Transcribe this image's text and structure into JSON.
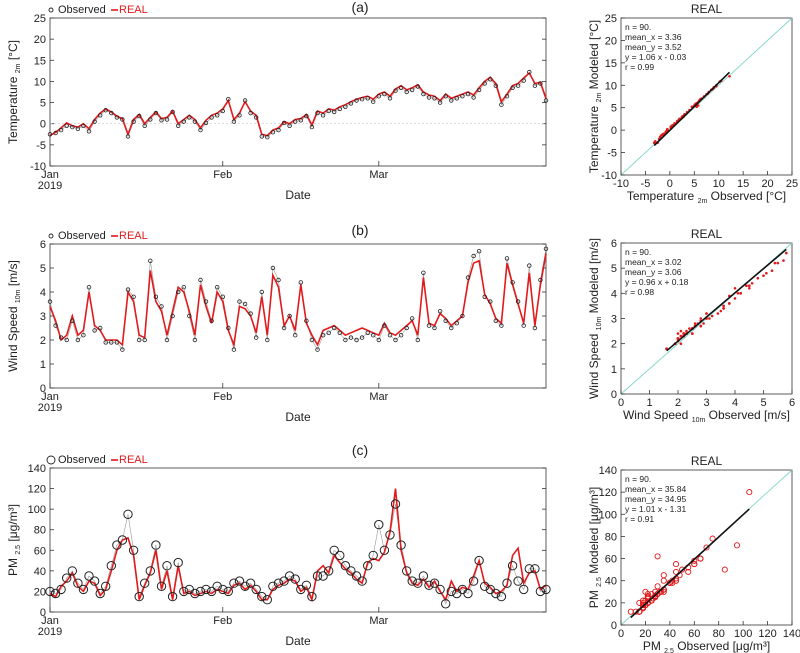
{
  "chart_data": [
    {
      "type": "line",
      "panel_label": "(a)",
      "legend": [
        "Observed",
        "REAL"
      ],
      "xlabel": "Date",
      "ylabel": "Temperature",
      "ylabel_sub": "2m",
      "ylabel_unit": "[°C]",
      "ylim": [
        -10,
        25
      ],
      "yticks": [
        "-10",
        "-5",
        "0",
        "5",
        "10",
        "15",
        "20",
        "25"
      ],
      "xtick_labels": [
        "Jan",
        "Feb",
        "Mar"
      ],
      "xtick_days": [
        0,
        31,
        59
      ],
      "year_label": "2019",
      "days": 90,
      "observed": [
        -2.5,
        -2.2,
        -1.5,
        -0.5,
        -0.8,
        -1.2,
        -0.5,
        -1.8,
        0.5,
        2.0,
        3.2,
        2.5,
        1.5,
        1.0,
        -3.0,
        0.5,
        1.8,
        -0.5,
        1.0,
        2.5,
        0.8,
        1.0,
        2.8,
        -0.5,
        0.5,
        1.5,
        0.5,
        -1.5,
        0.2,
        1.5,
        2.0,
        3.0,
        5.8,
        0.5,
        2.0,
        5.5,
        2.5,
        1.5,
        -3.0,
        -3.2,
        -2.0,
        -1.5,
        0.2,
        -0.5,
        0.5,
        0.8,
        1.8,
        -0.8,
        2.5,
        2.0,
        3.0,
        2.8,
        3.5,
        4.0,
        4.8,
        5.5,
        5.8,
        6.0,
        5.2,
        6.5,
        7.0,
        6.0,
        7.8,
        8.5,
        7.5,
        8.0,
        8.8,
        7.0,
        6.2,
        6.0,
        5.0,
        6.5,
        5.5,
        6.0,
        6.5,
        7.0,
        6.2,
        8.0,
        9.5,
        10.5,
        9.0,
        4.5,
        6.5,
        8.5,
        9.0,
        10.2,
        12.2,
        9.0,
        9.5,
        5.5
      ],
      "modeled": [
        -2.8,
        -2.0,
        -1.0,
        0.2,
        -0.5,
        -0.8,
        0.0,
        -1.2,
        1.0,
        2.5,
        3.5,
        2.8,
        1.8,
        1.2,
        -2.5,
        1.0,
        2.2,
        0.0,
        1.5,
        2.8,
        1.2,
        1.5,
        3.0,
        0.0,
        1.0,
        2.0,
        1.0,
        -1.0,
        0.8,
        2.0,
        2.5,
        3.5,
        5.5,
        1.0,
        2.5,
        5.2,
        3.0,
        2.0,
        -2.5,
        -2.8,
        -1.5,
        -1.0,
        0.5,
        0.0,
        1.0,
        1.2,
        2.2,
        -0.3,
        3.0,
        2.5,
        3.5,
        3.2,
        4.0,
        4.5,
        5.2,
        5.8,
        6.2,
        6.5,
        5.8,
        7.0,
        7.5,
        6.5,
        8.2,
        9.0,
        8.0,
        8.5,
        9.2,
        7.5,
        6.8,
        6.5,
        5.5,
        7.0,
        6.0,
        6.5,
        7.0,
        7.5,
        6.8,
        8.5,
        10.0,
        11.0,
        9.5,
        5.2,
        7.0,
        9.0,
        9.5,
        10.8,
        12.0,
        9.5,
        9.8,
        6.0
      ],
      "scatter": {
        "title": "REAL",
        "xlabel": "Temperature",
        "ylabel": "Temperature",
        "label_sub": "2m",
        "xlabel_tail": "Observed [°C]",
        "ylabel_tail": "Modeled [°C]",
        "lim": [
          -10,
          25
        ],
        "ticks": [
          "-10",
          "-5",
          "0",
          "5",
          "10",
          "15",
          "20",
          "25"
        ],
        "stats": [
          "n = 90.",
          "mean_x = 3.36",
          "mean_y = 3.52",
          "y = 1.06 x - 0.03",
          "r = 0.99"
        ],
        "fit": {
          "slope": 1.06,
          "intercept": -0.03
        }
      }
    },
    {
      "type": "line",
      "panel_label": "(b)",
      "legend": [
        "Observed",
        "REAL"
      ],
      "xlabel": "Date",
      "ylabel": "Wind Speed",
      "ylabel_sub": "10m",
      "ylabel_unit": "[m/s]",
      "ylim": [
        0,
        6
      ],
      "yticks": [
        "0",
        "1",
        "2",
        "3",
        "4",
        "5",
        "6"
      ],
      "xtick_labels": [
        "Jan",
        "Feb",
        "Mar"
      ],
      "xtick_days": [
        0,
        31,
        59
      ],
      "year_label": "2019",
      "days": 90,
      "observed": [
        3.6,
        2.6,
        2.1,
        2.0,
        2.8,
        2.0,
        2.2,
        4.2,
        2.4,
        2.5,
        1.9,
        1.9,
        1.9,
        1.6,
        4.1,
        3.8,
        2.0,
        2.0,
        5.3,
        3.8,
        3.4,
        2.0,
        3.0,
        4.0,
        4.2,
        3.0,
        2.0,
        4.5,
        3.6,
        2.8,
        4.2,
        3.8,
        2.5,
        1.6,
        3.6,
        3.5,
        3.1,
        2.1,
        4.0,
        2.0,
        5.0,
        4.5,
        2.5,
        3.0,
        2.2,
        4.4,
        2.8,
        2.0,
        1.6,
        2.2,
        2.3,
        2.5,
        2.3,
        2.0,
        2.1,
        2.0,
        2.1,
        2.3,
        2.2,
        2.0,
        2.6,
        2.2,
        2.0,
        2.2,
        2.5,
        2.9,
        2.0,
        4.8,
        2.6,
        2.5,
        3.2,
        2.8,
        2.5,
        2.7,
        3.0,
        4.6,
        5.5,
        5.7,
        3.8,
        3.6,
        2.8,
        2.6,
        5.4,
        4.4,
        3.6,
        2.6,
        5.1,
        2.5,
        4.5,
        5.8
      ],
      "modeled": [
        3.4,
        2.8,
        2.0,
        2.2,
        3.0,
        2.2,
        2.4,
        4.0,
        2.6,
        2.4,
        2.0,
        2.0,
        2.0,
        1.8,
        4.0,
        3.6,
        2.2,
        2.1,
        4.9,
        3.6,
        3.2,
        2.2,
        3.2,
        4.2,
        4.0,
        3.2,
        2.2,
        4.3,
        3.4,
        2.7,
        4.0,
        3.6,
        2.4,
        1.8,
        3.4,
        3.3,
        3.0,
        2.3,
        3.8,
        2.2,
        4.7,
        4.2,
        2.6,
        3.0,
        2.4,
        4.3,
        2.7,
        2.2,
        1.8,
        2.4,
        2.5,
        2.6,
        2.4,
        2.2,
        2.3,
        2.4,
        2.5,
        2.4,
        2.3,
        2.2,
        2.7,
        2.3,
        2.2,
        2.4,
        2.6,
        2.8,
        2.2,
        4.6,
        2.7,
        2.6,
        3.1,
        2.9,
        2.6,
        2.8,
        3.0,
        4.4,
        5.2,
        5.3,
        3.9,
        3.5,
        2.9,
        2.7,
        5.2,
        4.3,
        3.5,
        2.7,
        4.8,
        2.6,
        4.3,
        5.6
      ],
      "scatter": {
        "title": "REAL",
        "xlabel": "Wind Speed",
        "ylabel": "Wind Speed",
        "label_sub": "10m",
        "xlabel_tail": "Observed [m/s]",
        "ylabel_tail": "Modeled [m/s]",
        "lim": [
          0,
          6
        ],
        "ticks": [
          "0",
          "1",
          "2",
          "3",
          "4",
          "5",
          "6"
        ],
        "stats": [
          "n = 90.",
          "mean_x = 3.02",
          "mean_y = 3.06",
          "y = 0.96 x + 0.18",
          "r = 0.98"
        ],
        "fit": {
          "slope": 0.96,
          "intercept": 0.18
        }
      }
    },
    {
      "type": "line",
      "panel_label": "(c)",
      "legend": [
        "Observed",
        "REAL"
      ],
      "xlabel": "Date",
      "ylabel": "PM",
      "ylabel_sub": "2.5",
      "ylabel_unit": "[μg/m³]",
      "ylim": [
        0,
        140
      ],
      "yticks": [
        "0",
        "20",
        "40",
        "60",
        "80",
        "100",
        "120",
        "140"
      ],
      "xtick_labels": [
        "Jan",
        "Feb",
        "Mar"
      ],
      "xtick_days": [
        0,
        31,
        59
      ],
      "year_label": "2019",
      "days": 90,
      "observed": [
        20,
        18,
        22,
        33,
        40,
        28,
        22,
        35,
        30,
        18,
        25,
        45,
        65,
        70,
        95,
        60,
        15,
        28,
        40,
        65,
        25,
        45,
        15,
        48,
        20,
        22,
        18,
        20,
        22,
        20,
        25,
        22,
        20,
        28,
        30,
        25,
        28,
        22,
        15,
        12,
        25,
        28,
        30,
        35,
        32,
        22,
        26,
        15,
        35,
        35,
        40,
        60,
        55,
        45,
        40,
        35,
        30,
        45,
        55,
        85,
        60,
        75,
        105,
        65,
        40,
        30,
        28,
        35,
        26,
        28,
        22,
        8,
        20,
        18,
        22,
        18,
        30,
        50,
        25,
        22,
        18,
        15,
        28,
        45,
        30,
        22,
        42,
        42,
        20,
        22
      ],
      "modeled": [
        18,
        15,
        25,
        30,
        38,
        25,
        20,
        30,
        28,
        16,
        22,
        40,
        60,
        70,
        72,
        55,
        12,
        26,
        38,
        60,
        22,
        40,
        12,
        45,
        18,
        20,
        16,
        18,
        20,
        18,
        22,
        20,
        18,
        26,
        28,
        22,
        26,
        20,
        12,
        12,
        22,
        26,
        28,
        32,
        30,
        20,
        24,
        12,
        40,
        45,
        38,
        55,
        48,
        42,
        38,
        32,
        28,
        48,
        52,
        50,
        58,
        78,
        120,
        60,
        38,
        28,
        26,
        32,
        24,
        30,
        20,
        12,
        30,
        20,
        24,
        22,
        35,
        50,
        28,
        24,
        18,
        20,
        26,
        55,
        62,
        28,
        38,
        40,
        22,
        26
      ],
      "scatter": {
        "title": "REAL",
        "xlabel": "PM",
        "ylabel": "PM",
        "label_sub": "2.5",
        "xlabel_tail": "Observed [μg/m³]",
        "ylabel_tail": "Modeled [μg/m³]",
        "lim": [
          0,
          140
        ],
        "ticks": [
          "0",
          "20",
          "40",
          "60",
          "80",
          "100",
          "120",
          "140"
        ],
        "stats": [
          "n = 90.",
          "mean_x = 35.84",
          "mean_y = 34.95",
          "y = 1.01 x - 1.31",
          "r = 0.91"
        ],
        "fit": {
          "slope": 1.01,
          "intercept": -1.31
        }
      }
    }
  ]
}
